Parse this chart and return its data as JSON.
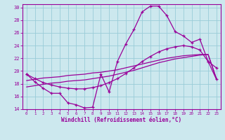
{
  "xlabel": "Windchill (Refroidissement éolien,°C)",
  "background_color": "#cce8ee",
  "grid_color": "#99ccd8",
  "line_color": "#990099",
  "spine_color": "#660066",
  "xlim": [
    -0.5,
    23.5
  ],
  "ylim": [
    14,
    30.5
  ],
  "yticks": [
    14,
    16,
    18,
    20,
    22,
    24,
    26,
    28,
    30
  ],
  "xticks": [
    0,
    1,
    2,
    3,
    4,
    5,
    6,
    7,
    8,
    9,
    10,
    11,
    12,
    13,
    14,
    15,
    16,
    17,
    18,
    19,
    20,
    21,
    22,
    23
  ],
  "series1_x": [
    0,
    1,
    2,
    3,
    4,
    5,
    6,
    7,
    8,
    9,
    10,
    11,
    12,
    13,
    14,
    15,
    16,
    17,
    18,
    19,
    20,
    21,
    22,
    23
  ],
  "series1_y": [
    19.5,
    18.3,
    17.3,
    16.5,
    16.5,
    15.0,
    14.7,
    14.2,
    14.3,
    19.5,
    16.7,
    21.5,
    24.2,
    26.5,
    29.3,
    30.2,
    30.2,
    28.7,
    26.2,
    25.5,
    24.5,
    25.0,
    21.5,
    20.5
  ],
  "series2_x": [
    0,
    1,
    2,
    3,
    4,
    5,
    6,
    7,
    8,
    9,
    10,
    11,
    12,
    13,
    14,
    15,
    16,
    17,
    18,
    19,
    20,
    21,
    22,
    23
  ],
  "series2_y": [
    19.5,
    18.8,
    18.2,
    17.8,
    17.5,
    17.3,
    17.2,
    17.2,
    17.4,
    17.7,
    18.2,
    18.8,
    19.6,
    20.5,
    21.5,
    22.3,
    23.0,
    23.5,
    23.8,
    24.0,
    23.8,
    23.3,
    21.5,
    18.7
  ],
  "series3_x": [
    0,
    1,
    2,
    3,
    4,
    5,
    6,
    7,
    8,
    9,
    10,
    11,
    12,
    13,
    14,
    15,
    16,
    17,
    18,
    19,
    20,
    21,
    22,
    23
  ],
  "series3_y": [
    17.5,
    17.7,
    17.9,
    18.1,
    18.2,
    18.4,
    18.5,
    18.6,
    18.8,
    19.0,
    19.2,
    19.5,
    19.8,
    20.1,
    20.5,
    20.9,
    21.3,
    21.6,
    21.9,
    22.1,
    22.3,
    22.5,
    22.6,
    18.8
  ],
  "series4_x": [
    0,
    1,
    2,
    3,
    4,
    5,
    6,
    7,
    8,
    9,
    10,
    11,
    12,
    13,
    14,
    15,
    16,
    17,
    18,
    19,
    20,
    21,
    22,
    23
  ],
  "series4_y": [
    18.5,
    18.7,
    18.9,
    19.0,
    19.1,
    19.3,
    19.4,
    19.5,
    19.7,
    19.8,
    20.0,
    20.2,
    20.5,
    20.8,
    21.1,
    21.4,
    21.7,
    22.0,
    22.2,
    22.4,
    22.5,
    22.6,
    22.6,
    18.8
  ]
}
